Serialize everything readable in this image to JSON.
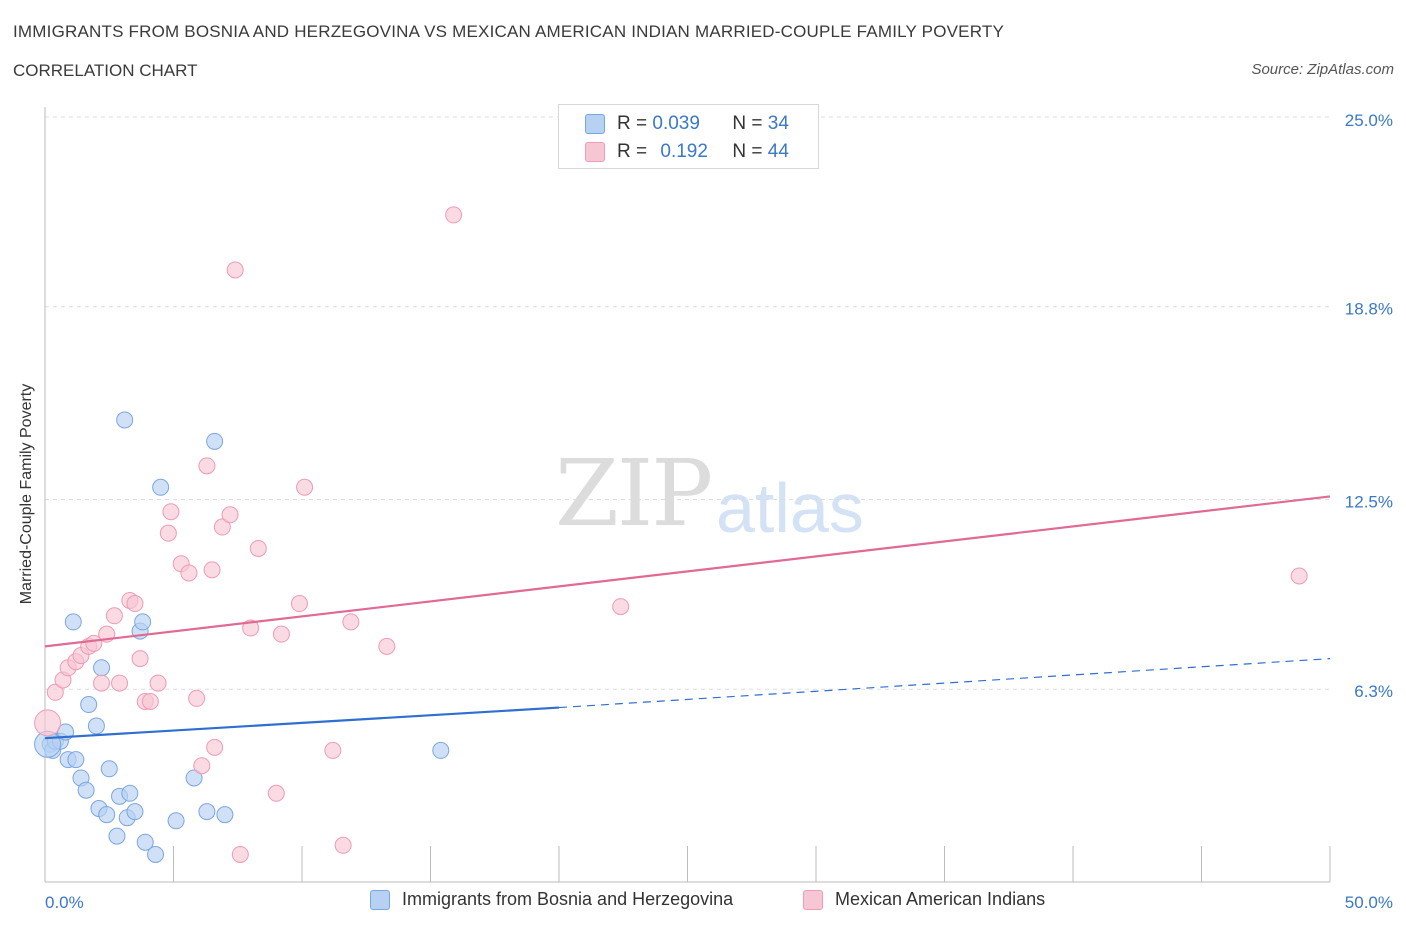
{
  "title": "IMMIGRANTS FROM BOSNIA AND HERZEGOVINA VS MEXICAN AMERICAN INDIAN MARRIED-COUPLE FAMILY POVERTY",
  "subtitle": "CORRELATION CHART",
  "source": "Source: ZipAtlas.com",
  "watermark": {
    "zip": "ZIP",
    "atlas": "atlas"
  },
  "legend": {
    "rows": [
      {
        "r_label": "R = ",
        "r_value": "0.039",
        "n_label": "N = ",
        "n_value": "34"
      },
      {
        "r_label": "R = ",
        "r_value": "0.192",
        "n_label": "N = ",
        "n_value": "44"
      }
    ]
  },
  "colors": {
    "blue_fill": "#b7d1f3",
    "blue_stroke": "#7aa6e0",
    "blue_line": "#2e6fd0",
    "pink_fill": "#f7c6d4",
    "pink_stroke": "#ee9bb4",
    "pink_line": "#e06a92",
    "tick_label": "#3a78c9",
    "grid": "#dddddd"
  },
  "chart_data": {
    "type": "scatter",
    "ylabel": "Married-Couple Family Poverty",
    "xlim": [
      0,
      50
    ],
    "ylim": [
      0,
      25
    ],
    "x_tick_labels": [
      {
        "value": 0,
        "label": "0.0%"
      },
      {
        "value": 50,
        "label": "50.0%"
      }
    ],
    "y_tick_labels": [
      {
        "value": 6.3,
        "label": "6.3%"
      },
      {
        "value": 12.5,
        "label": "12.5%"
      },
      {
        "value": 18.8,
        "label": "18.8%"
      },
      {
        "value": 25.0,
        "label": "25.0%"
      }
    ],
    "grid": true,
    "legend_position": "top-center",
    "series": [
      {
        "name": "Immigrants from Bosnia and Herzegovina",
        "color": "blue",
        "trend": {
          "x": [
            0,
            20,
            50
          ],
          "y": [
            4.7,
            5.7,
            7.3
          ],
          "solid_until": 20
        },
        "points": [
          [
            0.2,
            4.5
          ],
          [
            0.3,
            4.3
          ],
          [
            0.4,
            4.6
          ],
          [
            0.6,
            4.6
          ],
          [
            0.8,
            4.9
          ],
          [
            0.9,
            4.0
          ],
          [
            1.1,
            8.5
          ],
          [
            1.2,
            4.0
          ],
          [
            1.4,
            3.4
          ],
          [
            1.6,
            3.0
          ],
          [
            1.7,
            5.8
          ],
          [
            2.0,
            5.1
          ],
          [
            2.1,
            2.4
          ],
          [
            2.2,
            7.0
          ],
          [
            2.4,
            2.2
          ],
          [
            2.5,
            3.7
          ],
          [
            2.8,
            1.5
          ],
          [
            2.9,
            2.8
          ],
          [
            3.1,
            15.1
          ],
          [
            3.2,
            2.1
          ],
          [
            3.3,
            2.9
          ],
          [
            3.5,
            2.3
          ],
          [
            3.7,
            8.2
          ],
          [
            3.8,
            8.5
          ],
          [
            3.9,
            1.3
          ],
          [
            4.3,
            0.9
          ],
          [
            4.5,
            12.9
          ],
          [
            5.1,
            2.0
          ],
          [
            5.8,
            3.4
          ],
          [
            6.3,
            2.3
          ],
          [
            6.6,
            14.4
          ],
          [
            7.0,
            2.2
          ],
          [
            15.4,
            4.3
          ],
          [
            0.1,
            4.5
          ]
        ]
      },
      {
        "name": "Mexican American Indians",
        "color": "pink",
        "trend": {
          "x": [
            0,
            50
          ],
          "y": [
            7.7,
            12.6
          ]
        },
        "points": [
          [
            0.1,
            5.2
          ],
          [
            0.4,
            6.2
          ],
          [
            0.7,
            6.6
          ],
          [
            0.9,
            7.0
          ],
          [
            1.2,
            7.2
          ],
          [
            1.4,
            7.4
          ],
          [
            1.7,
            7.7
          ],
          [
            1.9,
            7.8
          ],
          [
            2.2,
            6.5
          ],
          [
            2.4,
            8.1
          ],
          [
            2.7,
            8.7
          ],
          [
            2.9,
            6.5
          ],
          [
            3.3,
            9.2
          ],
          [
            3.5,
            9.1
          ],
          [
            3.7,
            7.3
          ],
          [
            3.9,
            5.9
          ],
          [
            4.1,
            5.9
          ],
          [
            4.4,
            6.5
          ],
          [
            4.8,
            11.4
          ],
          [
            4.9,
            12.1
          ],
          [
            5.3,
            10.4
          ],
          [
            5.6,
            10.1
          ],
          [
            5.9,
            6.0
          ],
          [
            6.1,
            3.8
          ],
          [
            6.3,
            13.6
          ],
          [
            6.5,
            10.2
          ],
          [
            6.6,
            4.4
          ],
          [
            6.9,
            11.6
          ],
          [
            7.2,
            12.0
          ],
          [
            7.4,
            20.0
          ],
          [
            7.6,
            0.9
          ],
          [
            8.0,
            8.3
          ],
          [
            8.3,
            10.9
          ],
          [
            9.0,
            2.9
          ],
          [
            9.2,
            8.1
          ],
          [
            9.9,
            9.1
          ],
          [
            10.1,
            12.9
          ],
          [
            11.2,
            4.3
          ],
          [
            11.6,
            1.2
          ],
          [
            11.9,
            8.5
          ],
          [
            13.3,
            7.7
          ],
          [
            15.9,
            21.8
          ],
          [
            22.4,
            9.0
          ],
          [
            48.8,
            10.0
          ]
        ]
      }
    ]
  }
}
